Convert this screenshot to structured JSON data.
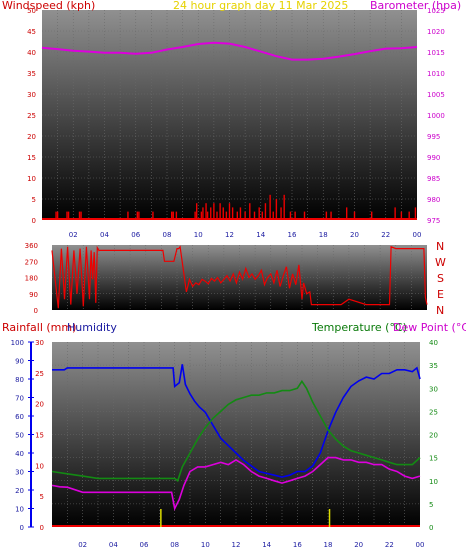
{
  "chart_data": [
    {
      "type": "line",
      "title": "24 hour graph day   11 Mar 2025",
      "left_label": "Windspeed (kph)",
      "right_label": "Barometer (hpa)",
      "x_ticks": [
        "02",
        "04",
        "06",
        "08",
        "10",
        "12",
        "14",
        "16",
        "18",
        "20",
        "22",
        "00"
      ],
      "y_left_ticks": [
        0,
        5,
        10,
        15,
        20,
        25,
        30,
        35,
        40,
        45,
        50
      ],
      "y_right_ticks": [
        975,
        980,
        985,
        990,
        995,
        1000,
        1005,
        1010,
        1015,
        1020,
        1025
      ],
      "ylim_left": [
        0,
        50
      ],
      "ylim_right": [
        975,
        1025
      ],
      "colors": {
        "windspeed": "#ee0000",
        "barometer": "#dd00dd",
        "title": "#e6d200",
        "left_label": "#cc0000",
        "right_label": "#cc00cc"
      },
      "series": [
        {
          "key": "barometer",
          "axis": "right",
          "color": "#dd00dd",
          "x": [
            0,
            1,
            2,
            3,
            4,
            5,
            6,
            7,
            8,
            9,
            10,
            11,
            12,
            13,
            14,
            15,
            16,
            17,
            18,
            19,
            20,
            21,
            22,
            23,
            24
          ],
          "y": [
            1016,
            1015.7,
            1015.3,
            1015.1,
            1014.8,
            1014.8,
            1014.6,
            1014.8,
            1015.6,
            1016.2,
            1016.9,
            1017.2,
            1017.0,
            1016.2,
            1015.1,
            1014.0,
            1013.2,
            1013.2,
            1013.4,
            1013.9,
            1014.5,
            1015.2,
            1015.8,
            1015.9,
            1016.2
          ]
        },
        {
          "key": "windspeed",
          "axis": "left",
          "color": "#ee0000",
          "x": [
            0.9,
            1.0,
            1.6,
            1.7,
            2.4,
            2.5,
            5.5,
            6.1,
            6.2,
            7.1,
            8.3,
            8.4,
            8.6,
            9.8,
            9.9,
            10.2,
            10.3,
            10.5,
            10.6,
            10.8,
            11.0,
            11.2,
            11.4,
            11.6,
            11.8,
            12.0,
            12.2,
            12.5,
            12.7,
            13.0,
            13.3,
            13.6,
            13.9,
            14.1,
            14.3,
            14.6,
            14.8,
            15.0,
            15.3,
            15.5,
            15.9,
            16.2,
            16.8,
            18.2,
            18.5,
            19.5,
            20.0,
            21.1,
            22.6,
            23.0,
            23.5,
            23.9
          ],
          "y": [
            2,
            2,
            2,
            2,
            2,
            2,
            2,
            2,
            2,
            2,
            2,
            2,
            2,
            2,
            4,
            2,
            3,
            4,
            2,
            3,
            4,
            2,
            4,
            3,
            2,
            4,
            3,
            2,
            3,
            2,
            4,
            2,
            3,
            2,
            4,
            6,
            2,
            5,
            3,
            6,
            2,
            2,
            2,
            2,
            2,
            3,
            2,
            2,
            3,
            2,
            2,
            3
          ]
        }
      ]
    },
    {
      "type": "line",
      "right_labels": [
        "N",
        "W",
        "S",
        "E",
        "N"
      ],
      "y_left_ticks": [
        0,
        90,
        180,
        270,
        360
      ],
      "ylim": [
        0,
        360
      ],
      "colors": {
        "direction": "#ee0000",
        "label": "#cc0000"
      },
      "series": [
        {
          "key": "wind_direction",
          "color": "#ee0000",
          "x": [
            0,
            0.4,
            0.6,
            0.8,
            1.0,
            1.2,
            1.4,
            1.6,
            1.8,
            2.0,
            2.2,
            2.4,
            2.5,
            2.6,
            2.7,
            2.8,
            2.9,
            3.0,
            3.0,
            7.1,
            7.2,
            7.8,
            8.0,
            8.1,
            8.2,
            8.6,
            8.8,
            9.0,
            9.2,
            9.4,
            9.6,
            9.8,
            10.0,
            10.2,
            10.4,
            10.6,
            10.8,
            11.0,
            11.2,
            11.4,
            11.6,
            11.8,
            12.0,
            12.2,
            12.4,
            12.6,
            12.8,
            13.0,
            13.2,
            13.4,
            13.6,
            13.8,
            14.0,
            14.2,
            14.4,
            14.6,
            14.8,
            15.0,
            15.2,
            15.4,
            15.6,
            15.8,
            16.0,
            16.1,
            16.3,
            16.5,
            16.6,
            17.0,
            18.5,
            19.0,
            20.1,
            21.6,
            21.7,
            22.0,
            23.8,
            23.9,
            24.0
          ],
          "y": [
            330,
            10,
            340,
            60,
            350,
            30,
            330,
            90,
            340,
            20,
            350,
            60,
            330,
            170,
            320,
            40,
            345,
            330,
            330,
            330,
            270,
            270,
            340,
            340,
            350,
            100,
            170,
            130,
            150,
            140,
            170,
            160,
            145,
            175,
            160,
            180,
            150,
            170,
            190,
            160,
            200,
            150,
            210,
            170,
            230,
            180,
            200,
            170,
            190,
            220,
            140,
            180,
            200,
            150,
            220,
            130,
            190,
            240,
            120,
            200,
            140,
            250,
            60,
            150,
            90,
            100,
            30,
            30,
            30,
            60,
            30,
            30,
            350,
            340,
            340,
            70,
            30
          ]
        }
      ]
    },
    {
      "type": "line",
      "left_label_1": "Rainfall (mm)",
      "left_label_2": "Humidity",
      "right_label_1": "Temperature (°C)",
      "right_label_2": "Dew Point (°C)",
      "x_ticks": [
        "02",
        "04",
        "06",
        "08",
        "10",
        "12",
        "14",
        "16",
        "18",
        "20",
        "22",
        "00"
      ],
      "humidity_ticks": [
        0,
        10,
        20,
        30,
        40,
        50,
        60,
        70,
        80,
        90,
        100
      ],
      "rain_ticks": [
        0,
        5,
        10,
        15,
        20,
        25,
        30
      ],
      "temp_ticks": [
        0,
        5,
        10,
        15,
        20,
        25,
        30,
        35,
        40
      ],
      "ylim_humidity": [
        0,
        100
      ],
      "ylim_rain": [
        0,
        30
      ],
      "ylim_temp": [
        0,
        40
      ],
      "colors": {
        "humidity": "#0000ee",
        "temperature": "#138a13",
        "dewpoint": "#dd00dd",
        "rainfall": "#dddd00",
        "rain_label": "#cc0000",
        "humidity_label": "#1a1aa0",
        "temp_label": "#0a7a0a",
        "dew_label": "#cc00cc"
      },
      "series": [
        {
          "key": "humidity",
          "axis": "humidity",
          "color": "#0000ee",
          "x": [
            0,
            0.8,
            1,
            2,
            3,
            4,
            5,
            6,
            7,
            7.9,
            8,
            8.3,
            8.5,
            8.7,
            9.0,
            9.3,
            9.6,
            10,
            10.5,
            11,
            11.5,
            12,
            12.5,
            13,
            13.5,
            14,
            14.5,
            15,
            15.5,
            16,
            16.5,
            17,
            17.5,
            18,
            18.5,
            19,
            19.5,
            20,
            20.5,
            21,
            21.5,
            22,
            22.5,
            23,
            23.5,
            23.8,
            24
          ],
          "y": [
            85,
            85,
            86,
            86,
            86,
            86,
            86,
            86,
            86,
            86,
            76,
            78,
            88,
            77,
            72,
            68,
            65,
            62,
            55,
            48,
            44,
            40,
            36,
            33,
            30,
            29,
            28,
            27,
            28,
            30,
            30,
            33,
            40,
            52,
            62,
            70,
            76,
            79,
            81,
            80,
            83,
            83,
            85,
            85,
            84,
            86,
            80
          ]
        },
        {
          "key": "temperature",
          "axis": "temp",
          "color": "#138a13",
          "x": [
            0,
            1,
            2,
            3,
            4,
            5,
            6,
            7,
            8,
            8.2,
            8.5,
            9,
            9.5,
            10,
            10.5,
            11,
            11.5,
            12,
            12.5,
            13,
            13.5,
            14,
            14.5,
            15,
            15.5,
            16,
            16.3,
            16.6,
            17,
            17.5,
            18,
            18.5,
            19,
            19.5,
            20,
            20.5,
            21,
            21.5,
            22,
            22.5,
            23,
            23.5,
            24
          ],
          "y": [
            12,
            11.5,
            11,
            10.5,
            10.5,
            10.5,
            10.5,
            10.5,
            10.5,
            10,
            13,
            16,
            19,
            21.5,
            23.5,
            25,
            26.5,
            27.5,
            28,
            28.5,
            28.5,
            29,
            29,
            29.5,
            29.5,
            30,
            31.5,
            30,
            27,
            24,
            21,
            19,
            17.5,
            16.5,
            16,
            15.5,
            15,
            14.5,
            14,
            13.5,
            13.5,
            13.5,
            15
          ]
        },
        {
          "key": "dew_point",
          "axis": "temp",
          "color": "#dd00dd",
          "x": [
            0,
            0.5,
            1,
            2,
            3,
            4,
            5,
            6,
            7,
            7.8,
            8,
            8.3,
            8.6,
            9,
            9.5,
            10,
            10.5,
            11,
            11.5,
            12,
            12.5,
            13,
            13.5,
            14,
            14.5,
            15,
            15.5,
            16,
            16.5,
            17,
            17.5,
            18,
            18.5,
            19,
            19.5,
            20,
            20.5,
            21,
            21.5,
            22,
            22.5,
            23,
            23.5,
            24
          ],
          "y": [
            9,
            8.7,
            8.6,
            7.5,
            7.5,
            7.5,
            7.5,
            7.5,
            7.5,
            7.5,
            4,
            6,
            9,
            12,
            13,
            13,
            13.5,
            14,
            13.5,
            14.5,
            13.5,
            12,
            11,
            10.5,
            10,
            9.5,
            10,
            10.5,
            11,
            12,
            13.5,
            15,
            15,
            14.5,
            14.5,
            14,
            14,
            13.5,
            13.5,
            12.5,
            12,
            11,
            10.5,
            11
          ]
        },
        {
          "key": "rainfall",
          "axis": "rain",
          "color": "#dddd00",
          "x": [
            7.1,
            18.1
          ],
          "y": [
            2.2,
            2.2
          ]
        }
      ]
    }
  ]
}
